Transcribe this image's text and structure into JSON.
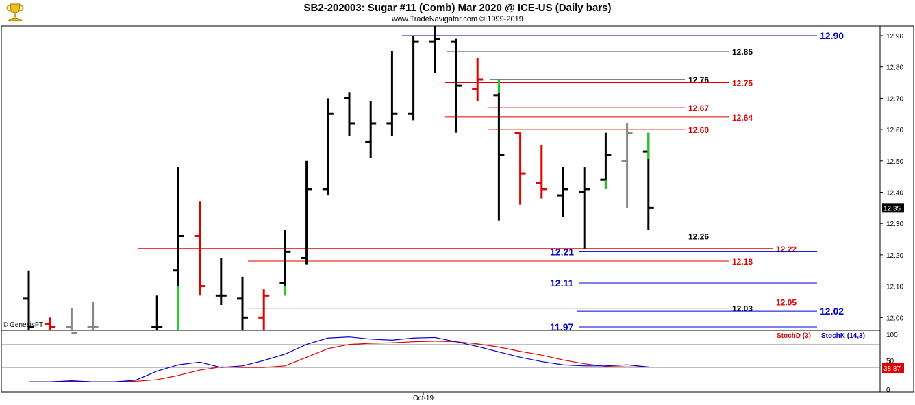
{
  "header": {
    "title": "SB2-202003:  Sugar #11 (Comb) Mar 2020 @ ICE-US  (Daily bars)",
    "subtitle": "www.TradeNavigator.com © 1999-2019"
  },
  "credit": "© GenesisFT",
  "colors": {
    "up": "#000000",
    "down": "#e00000",
    "neutral": "#888888",
    "highlight": "#22cc22",
    "blue": "#0000cc",
    "red": "#e00000",
    "black": "#000000"
  },
  "chart_data": [
    {
      "type": "ohlc",
      "ylim": [
        11.93,
        12.95
      ],
      "y_ticks": [
        "12.90",
        "12.80",
        "12.70",
        "12.60",
        "12.50",
        "12.40",
        "12.30",
        "12.20",
        "12.10",
        "12.00"
      ],
      "x_tick_label": "Oct-19",
      "last_price": "12.35",
      "bars": [
        {
          "o": 12.06,
          "h": 12.15,
          "l": 11.93,
          "c": 11.97,
          "color": "black"
        },
        {
          "o": 11.98,
          "h": 12.0,
          "l": 11.93,
          "c": 11.97,
          "color": "red"
        },
        {
          "o": 11.97,
          "h": 12.03,
          "l": 11.93,
          "c": 11.95,
          "color": "gray"
        },
        {
          "o": 11.97,
          "h": 12.05,
          "l": 11.93,
          "c": 11.97,
          "color": "gray"
        },
        {
          "o": null,
          "h": null,
          "l": null,
          "c": null,
          "color": "none"
        },
        {
          "o": null,
          "h": null,
          "l": null,
          "c": null,
          "color": "none"
        },
        {
          "o": 11.97,
          "h": 12.07,
          "l": 11.93,
          "c": 11.97,
          "color": "black"
        },
        {
          "o": 12.15,
          "h": 12.48,
          "l": 11.93,
          "c": 12.26,
          "color": "black",
          "green_low": 12.1
        },
        {
          "o": 12.26,
          "h": 12.37,
          "l": 12.07,
          "c": 12.1,
          "color": "red"
        },
        {
          "o": 12.07,
          "h": 12.19,
          "l": 12.04,
          "c": 12.07,
          "color": "black"
        },
        {
          "o": 12.06,
          "h": 12.13,
          "l": 11.93,
          "c": 12.0,
          "color": "black"
        },
        {
          "o": 12.0,
          "h": 12.09,
          "l": 11.95,
          "c": 12.07,
          "color": "red"
        },
        {
          "o": 12.11,
          "h": 12.28,
          "l": 12.07,
          "c": 12.21,
          "color": "black",
          "green_low": 12.1
        },
        {
          "o": 12.19,
          "h": 12.5,
          "l": 12.17,
          "c": 12.41,
          "color": "black"
        },
        {
          "o": 12.41,
          "h": 12.7,
          "l": 12.39,
          "c": 12.65,
          "color": "black"
        },
        {
          "o": 12.7,
          "h": 12.72,
          "l": 12.58,
          "c": 12.62,
          "color": "black"
        },
        {
          "o": 12.56,
          "h": 12.69,
          "l": 12.51,
          "c": 12.62,
          "color": "black"
        },
        {
          "o": 12.62,
          "h": 12.85,
          "l": 12.58,
          "c": 12.65,
          "color": "black"
        },
        {
          "o": 12.65,
          "h": 12.9,
          "l": 12.63,
          "c": 12.88,
          "color": "black"
        },
        {
          "o": 12.88,
          "h": 12.93,
          "l": 12.78,
          "c": 12.89,
          "color": "black"
        },
        {
          "o": 12.88,
          "h": 12.89,
          "l": 12.59,
          "c": 12.74,
          "color": "black"
        },
        {
          "o": 12.73,
          "h": 12.83,
          "l": 12.69,
          "c": 12.76,
          "color": "red"
        },
        {
          "o": 12.71,
          "h": 12.76,
          "l": 12.31,
          "c": 12.52,
          "color": "black",
          "green_high": 12.76
        },
        {
          "o": 12.59,
          "h": 12.59,
          "l": 12.36,
          "c": 12.46,
          "color": "red"
        },
        {
          "o": 12.43,
          "h": 12.55,
          "l": 12.38,
          "c": 12.41,
          "color": "red"
        },
        {
          "o": 12.39,
          "h": 12.48,
          "l": 12.32,
          "c": 12.41,
          "color": "black"
        },
        {
          "o": 12.4,
          "h": 12.48,
          "l": 12.22,
          "c": 12.41,
          "color": "black"
        },
        {
          "o": 12.44,
          "h": 12.59,
          "l": 12.41,
          "c": 12.52,
          "color": "black",
          "green_low": 12.44
        },
        {
          "o": 12.5,
          "h": 12.62,
          "l": 12.35,
          "c": 12.59,
          "color": "gray"
        },
        {
          "o": 12.53,
          "h": 12.59,
          "l": 12.28,
          "c": 12.35,
          "color": "black",
          "green_high": 12.55
        }
      ],
      "levels": [
        {
          "label": "12.90",
          "color": "blue",
          "value": 12.9
        },
        {
          "label": "12.85",
          "color": "black",
          "value": 12.85
        },
        {
          "label": "12.76",
          "color": "black",
          "value": 12.76
        },
        {
          "label": "12.75",
          "color": "red",
          "value": 12.75
        },
        {
          "label": "12.67",
          "color": "red",
          "value": 12.67
        },
        {
          "label": "12.64",
          "color": "red",
          "value": 12.64
        },
        {
          "label": "12.60",
          "color": "red",
          "value": 12.6
        },
        {
          "label": "12.26",
          "color": "black",
          "value": 12.26
        },
        {
          "label": "12.22",
          "color": "red",
          "value": 12.22
        },
        {
          "label": "12.21",
          "color": "blue",
          "value": 12.21
        },
        {
          "label": "12.18",
          "color": "red",
          "value": 12.18
        },
        {
          "label": "12.11",
          "color": "blue",
          "value": 12.11
        },
        {
          "label": "12.05",
          "color": "red",
          "value": 12.05
        },
        {
          "label": "12.03",
          "color": "black",
          "value": 12.03
        },
        {
          "label": "12.02",
          "color": "blue",
          "value": 12.02
        },
        {
          "label": "11.97",
          "color": "blue",
          "value": 11.97
        }
      ]
    },
    {
      "type": "line",
      "ylim": [
        0,
        100
      ],
      "y_ticks": [
        "100",
        "50",
        "0"
      ],
      "last_value": "38.87",
      "series": [
        {
          "name": "StochD (3)",
          "color": "red",
          "values": [
            10,
            10,
            11,
            10,
            10,
            11,
            14,
            22,
            32,
            38,
            37,
            37,
            40,
            56,
            72,
            80,
            82,
            83,
            85,
            86,
            85,
            81,
            75,
            67,
            60,
            51,
            44,
            39,
            38,
            38
          ]
        },
        {
          "name": "StochK (14,3)",
          "color": "blue",
          "values": [
            10,
            10,
            12,
            10,
            10,
            13,
            30,
            42,
            47,
            37,
            40,
            50,
            62,
            80,
            92,
            94,
            90,
            88,
            92,
            93,
            85,
            76,
            66,
            56,
            48,
            42,
            40,
            40,
            42,
            38
          ]
        }
      ]
    }
  ]
}
